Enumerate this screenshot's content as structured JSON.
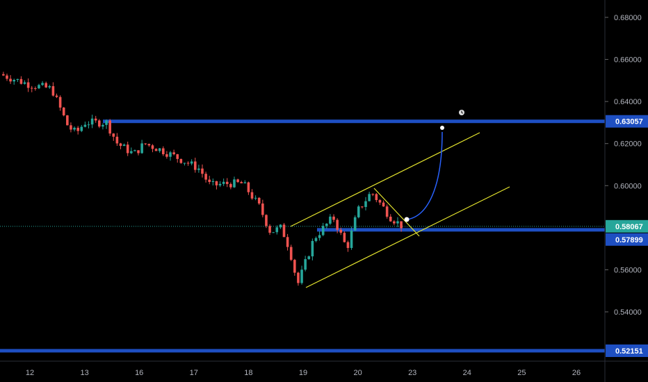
{
  "chart_data": {
    "type": "candlestick",
    "title": "",
    "x_ticks": [
      "12",
      "13",
      "16",
      "17",
      "18",
      "19",
      "20",
      "23",
      "24",
      "25",
      "26"
    ],
    "y_ticks": [
      "0.68000",
      "0.66000",
      "0.64000",
      "0.62000",
      "0.60000",
      "0.56000",
      "0.54000"
    ],
    "ylim": [
      0.515,
      0.688
    ],
    "price_path": [
      [
        -0.55,
        0.653
      ],
      [
        0,
        0.648
      ],
      [
        0.4,
        0.646
      ],
      [
        0.55,
        0.637
      ],
      [
        0.7,
        0.628
      ],
      [
        0.85,
        0.625
      ],
      [
        1.0,
        0.63
      ],
      [
        1.4,
        0.63
      ],
      [
        1.6,
        0.62
      ],
      [
        1.9,
        0.615
      ],
      [
        2.1,
        0.62
      ],
      [
        2.4,
        0.617
      ],
      [
        2.8,
        0.612
      ],
      [
        3.1,
        0.608
      ],
      [
        3.3,
        0.6
      ],
      [
        3.6,
        0.601
      ],
      [
        3.9,
        0.601
      ],
      [
        4.2,
        0.59
      ],
      [
        4.4,
        0.578
      ],
      [
        4.6,
        0.58
      ],
      [
        4.75,
        0.57
      ],
      [
        4.9,
        0.553
      ],
      [
        5.2,
        0.575
      ],
      [
        5.55,
        0.585
      ],
      [
        5.8,
        0.57
      ],
      [
        6.0,
        0.588
      ],
      [
        6.25,
        0.597
      ],
      [
        6.6,
        0.585
      ],
      [
        6.85,
        0.58
      ]
    ],
    "horizontal_levels": [
      {
        "price": 0.63057,
        "label": "0.63057"
      },
      {
        "price": 0.57899,
        "label": "0.57899"
      },
      {
        "price": 0.52151,
        "label": "0.52151"
      }
    ],
    "current_price": {
      "price": 0.58067,
      "label": "0.58067"
    },
    "colors": {
      "up": "#26a69a",
      "down": "#ef5350",
      "level": "#1e4fc2",
      "channel": "#e6e62e",
      "projection": "#2962ff",
      "current": "#26a69a"
    }
  }
}
